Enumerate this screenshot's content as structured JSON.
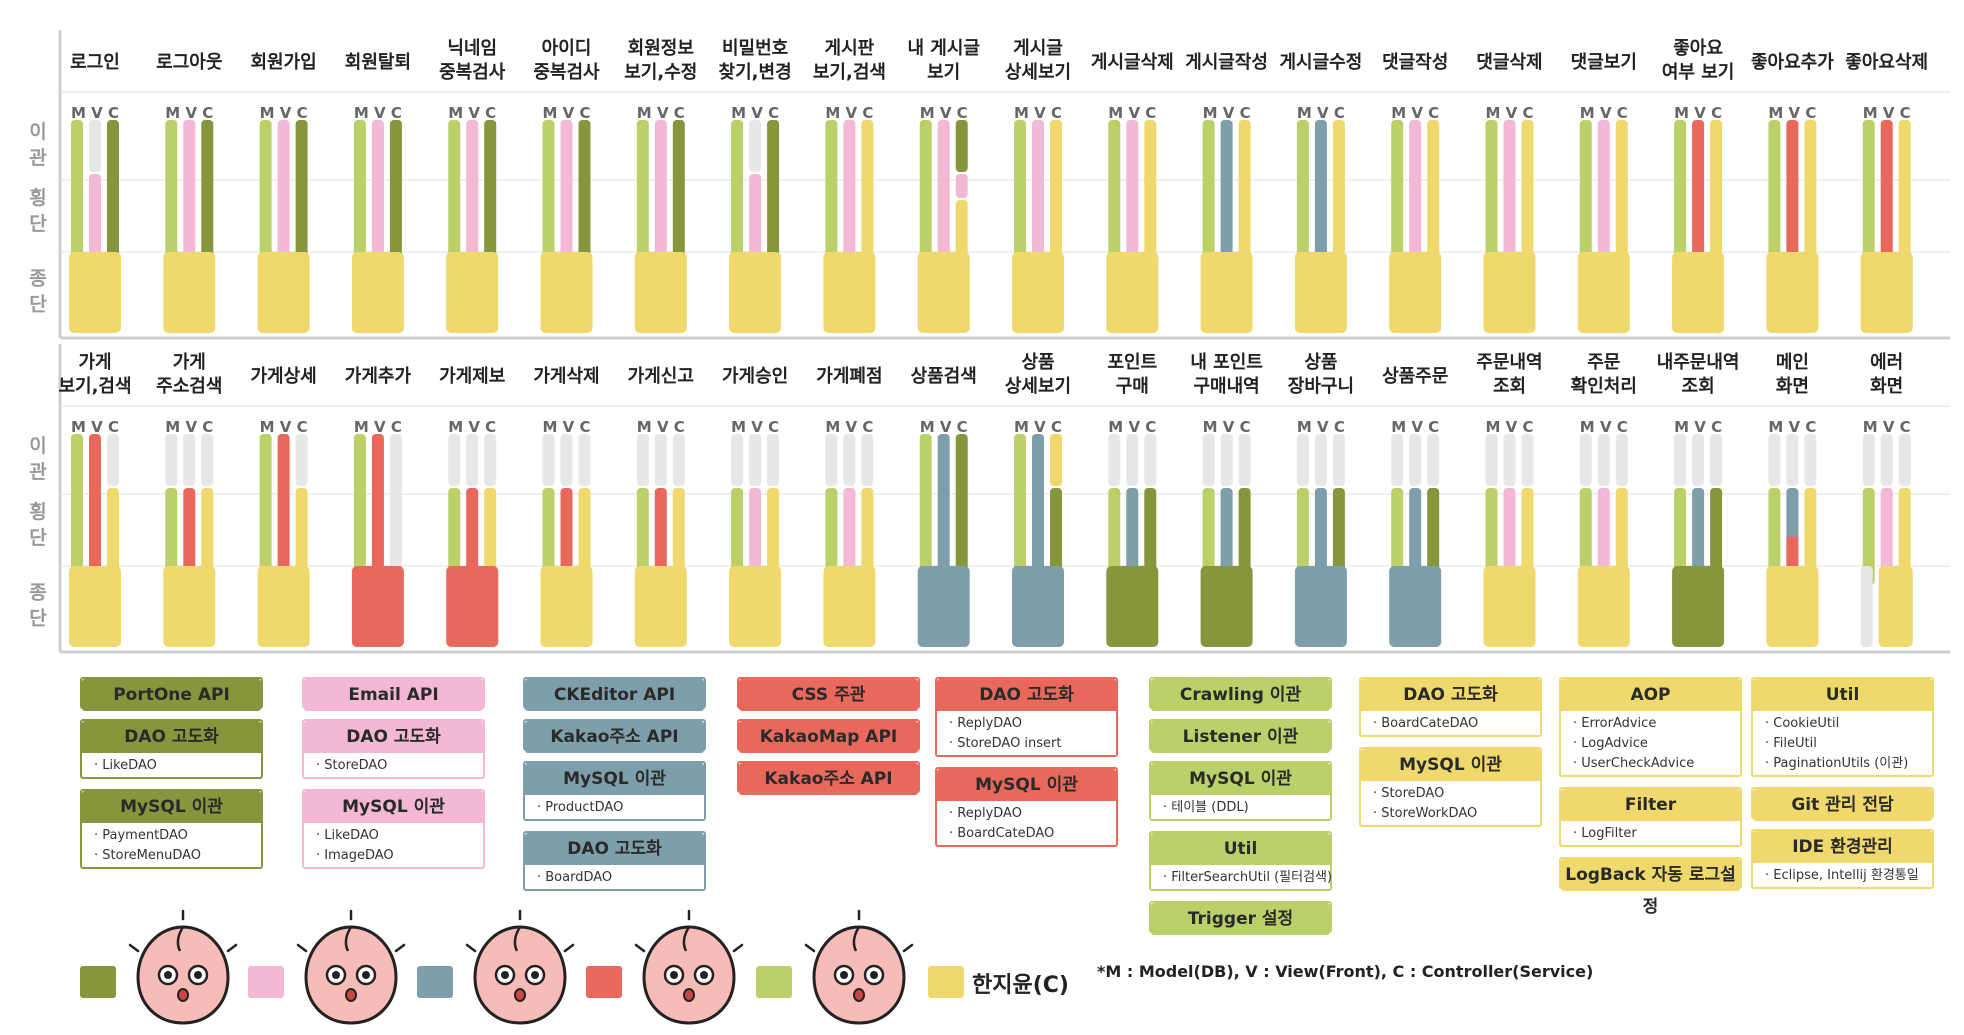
{
  "colors": {
    "olive": "#87953C",
    "pink": "#F2B8D4",
    "steel": "#7E9EAB",
    "coral": "#E8685C",
    "lime": "#BCD06A",
    "yellow": "#EFD96C",
    "gray": "#E7E7E7",
    "grid": "#cfcfcf"
  },
  "phases": [
    "이관",
    "횡단",
    "종단"
  ],
  "mvc_label": "M V C",
  "row1": [
    {
      "label": [
        "로그인"
      ],
      "bars": [
        "lime",
        "gray/pink",
        "olive"
      ],
      "foot": "yellow"
    },
    {
      "label": [
        "로그아웃"
      ],
      "bars": [
        "lime",
        "pink",
        "olive"
      ],
      "foot": "yellow"
    },
    {
      "label": [
        "회원가입"
      ],
      "bars": [
        "lime",
        "pink",
        "olive"
      ],
      "foot": "yellow"
    },
    {
      "label": [
        "회원탈퇴"
      ],
      "bars": [
        "lime",
        "pink",
        "olive"
      ],
      "foot": "yellow"
    },
    {
      "label": [
        "닉네임",
        "중복검사"
      ],
      "bars": [
        "lime",
        "pink",
        "olive"
      ],
      "foot": "yellow"
    },
    {
      "label": [
        "아이디",
        "중복검사"
      ],
      "bars": [
        "lime",
        "pink",
        "olive"
      ],
      "foot": "yellow"
    },
    {
      "label": [
        "회원정보",
        "보기,수정"
      ],
      "bars": [
        "lime",
        "pink",
        "olive"
      ],
      "foot": "yellow"
    },
    {
      "label": [
        "비밀번호",
        "찾기,변경"
      ],
      "bars": [
        "lime",
        "gray/pink",
        "olive"
      ],
      "foot": "yellow"
    },
    {
      "label": [
        "게시판",
        "보기,검색"
      ],
      "bars": [
        "lime",
        "pink",
        "yellow"
      ],
      "foot": "yellow"
    },
    {
      "label": [
        "내 게시글",
        "보기"
      ],
      "bars": [
        "lime",
        "pink",
        "olive/pink/yellow"
      ],
      "foot": "yellow"
    },
    {
      "label": [
        "게시글",
        "상세보기"
      ],
      "bars": [
        "lime",
        "pink",
        "yellow"
      ],
      "foot": "yellow"
    },
    {
      "label": [
        "게시글삭제"
      ],
      "bars": [
        "lime",
        "pink",
        "yellow"
      ],
      "foot": "yellow"
    },
    {
      "label": [
        "게시글작성"
      ],
      "bars": [
        "lime",
        "steel",
        "yellow"
      ],
      "foot": "yellow"
    },
    {
      "label": [
        "게시글수정"
      ],
      "bars": [
        "lime",
        "steel",
        "yellow"
      ],
      "foot": "yellow"
    },
    {
      "label": [
        "댓글작성"
      ],
      "bars": [
        "lime",
        "pink",
        "yellow"
      ],
      "foot": "yellow"
    },
    {
      "label": [
        "댓글삭제"
      ],
      "bars": [
        "lime",
        "pink",
        "yellow"
      ],
      "foot": "yellow"
    },
    {
      "label": [
        "댓글보기"
      ],
      "bars": [
        "lime",
        "pink",
        "yellow"
      ],
      "foot": "yellow"
    },
    {
      "label": [
        "좋아요",
        "여부 보기"
      ],
      "bars": [
        "lime",
        "coral",
        "yellow"
      ],
      "foot": "yellow"
    },
    {
      "label": [
        "좋아요추가"
      ],
      "bars": [
        "lime",
        "coral",
        "yellow"
      ],
      "foot": "yellow"
    },
    {
      "label": [
        "좋아요삭제"
      ],
      "bars": [
        "lime",
        "coral",
        "yellow"
      ],
      "foot": "yellow"
    }
  ],
  "row2": [
    {
      "label": [
        "가게",
        "보기,검색"
      ],
      "bars": [
        "lime",
        "coral",
        "gray"
      ],
      "foot": "yellow",
      "split": "top"
    },
    {
      "label": [
        "가게",
        "주소검색"
      ],
      "bars": [
        "gray/lime",
        "gray/coral",
        "gray/yellow"
      ],
      "foot": "yellow"
    },
    {
      "label": [
        "가게상세"
      ],
      "bars": [
        "lime",
        "coral",
        "gray"
      ],
      "foot": "yellow",
      "split": "top"
    },
    {
      "label": [
        "가게추가"
      ],
      "bars": [
        "lime",
        "coral",
        "gray"
      ],
      "foot": "coral"
    },
    {
      "label": [
        "가게제보"
      ],
      "bars": [
        "gray/lime",
        "gray/coral",
        "gray/yellow"
      ],
      "foot": "coral"
    },
    {
      "label": [
        "가게삭제"
      ],
      "bars": [
        "gray/lime",
        "gray/coral",
        "gray/yellow"
      ],
      "foot": "yellow"
    },
    {
      "label": [
        "가게신고"
      ],
      "bars": [
        "gray/lime",
        "gray/coral",
        "gray/yellow"
      ],
      "foot": "yellow"
    },
    {
      "label": [
        "가게승인"
      ],
      "bars": [
        "gray/lime",
        "gray/pink",
        "gray/yellow"
      ],
      "foot": "yellow"
    },
    {
      "label": [
        "가게폐점"
      ],
      "bars": [
        "gray/lime",
        "gray/pink",
        "gray/yellow"
      ],
      "foot": "yellow"
    },
    {
      "label": [
        "상품검색"
      ],
      "bars": [
        "lime",
        "steel",
        "olive"
      ],
      "foot": "steel"
    },
    {
      "label": [
        "상품",
        "상세보기"
      ],
      "bars": [
        "lime",
        "steel",
        "yellow/olive"
      ],
      "foot": "steel"
    },
    {
      "label": [
        "포인트",
        "구매"
      ],
      "bars": [
        "gray/lime",
        "gray/steel",
        "gray/olive"
      ],
      "foot": "olive"
    },
    {
      "label": [
        "내 포인트",
        "구매내역"
      ],
      "bars": [
        "gray/lime",
        "gray/steel",
        "gray/olive"
      ],
      "foot": "olive"
    },
    {
      "label": [
        "상품",
        "장바구니"
      ],
      "bars": [
        "gray/lime",
        "gray/steel",
        "gray/olive"
      ],
      "foot": "steel"
    },
    {
      "label": [
        "상품주문"
      ],
      "bars": [
        "gray/lime",
        "gray/steel",
        "gray/olive"
      ],
      "foot": "steel"
    },
    {
      "label": [
        "주문내역",
        "조회"
      ],
      "bars": [
        "gray/lime",
        "gray/pink",
        "gray/yellow"
      ],
      "foot": "yellow"
    },
    {
      "label": [
        "주문",
        "확인처리"
      ],
      "bars": [
        "gray/lime",
        "gray/pink",
        "gray/yellow"
      ],
      "foot": "yellow"
    },
    {
      "label": [
        "내주문내역",
        "조회"
      ],
      "bars": [
        "gray/lime",
        "gray/steel",
        "gray/olive"
      ],
      "foot": "olive"
    },
    {
      "label": [
        "메인",
        "화면"
      ],
      "bars": [
        "gray/lime",
        "gray/steel+coral",
        "gray/yellow"
      ],
      "foot": "yellow"
    },
    {
      "label": [
        "에러",
        "화면"
      ],
      "bars": [
        "gray/lime",
        "gray/pink",
        "gray/yellow"
      ],
      "foot": "yellow",
      "foot_split": true
    }
  ],
  "task_boxes": [
    {
      "color": "olive",
      "col": 0,
      "title": "PortOne API",
      "items": []
    },
    {
      "color": "olive",
      "col": 0,
      "title": "DAO 고도화",
      "items": [
        "LikeDAO"
      ]
    },
    {
      "color": "olive",
      "col": 0,
      "title": "MySQL 이관",
      "items": [
        "PaymentDAO",
        "StoreMenuDAO"
      ]
    },
    {
      "color": "pink",
      "col": 1,
      "title": "Email API",
      "items": []
    },
    {
      "color": "pink",
      "col": 1,
      "title": "DAO 고도화",
      "items": [
        "StoreDAO"
      ]
    },
    {
      "color": "pink",
      "col": 1,
      "title": "MySQL 이관",
      "items": [
        "LikeDAO",
        "ImageDAO"
      ]
    },
    {
      "color": "steel",
      "col": 2,
      "title": "CKEditor API",
      "items": []
    },
    {
      "color": "steel",
      "col": 2,
      "title": "Kakao주소 API",
      "items": []
    },
    {
      "color": "steel",
      "col": 2,
      "title": "MySQL 이관",
      "items": [
        "ProductDAO"
      ]
    },
    {
      "color": "steel",
      "col": 2,
      "title": "DAO 고도화",
      "items": [
        "BoardDAO"
      ]
    },
    {
      "color": "coral",
      "col": 3,
      "title": "CSS 주관",
      "items": []
    },
    {
      "color": "coral",
      "col": 3,
      "title": "KakaoMap API",
      "items": []
    },
    {
      "color": "coral",
      "col": 3,
      "title": "Kakao주소 API",
      "items": []
    },
    {
      "color": "coral",
      "col": 4,
      "title": "DAO 고도화",
      "items": [
        "ReplyDAO",
        "StoreDAO insert"
      ]
    },
    {
      "color": "coral",
      "col": 4,
      "title": "MySQL 이관",
      "items": [
        "ReplyDAO",
        "BoardCateDAO"
      ]
    },
    {
      "color": "lime",
      "col": 5,
      "title": "Crawling 이관",
      "items": []
    },
    {
      "color": "lime",
      "col": 5,
      "title": "Listener 이관",
      "items": []
    },
    {
      "color": "lime",
      "col": 5,
      "title": "MySQL 이관",
      "items": [
        "테이블 (DDL)"
      ]
    },
    {
      "color": "lime",
      "col": 5,
      "title": "Util",
      "items": [
        "FilterSearchUtil (필터검색)"
      ]
    },
    {
      "color": "lime",
      "col": 5,
      "title": "Trigger 설정",
      "items": []
    },
    {
      "color": "yellow",
      "col": 6,
      "title": "DAO 고도화",
      "items": [
        "BoardCateDAO"
      ]
    },
    {
      "color": "yellow",
      "col": 6,
      "title": "MySQL 이관",
      "items": [
        "StoreDAO",
        "StoreWorkDAO"
      ]
    },
    {
      "color": "yellow",
      "col": 7,
      "title": "AOP",
      "items": [
        "ErrorAdvice",
        "LogAdvice",
        "UserCheckAdvice"
      ]
    },
    {
      "color": "yellow",
      "col": 7,
      "title": "Filter",
      "items": [
        "LogFilter"
      ]
    },
    {
      "color": "yellow",
      "col": 7,
      "title": "LogBack 자동 로그설정",
      "items": []
    },
    {
      "color": "yellow",
      "col": 8,
      "title": "Util",
      "items": [
        "CookieUtil",
        "FileUtil",
        "PaginationUtils (이관)"
      ]
    },
    {
      "color": "yellow",
      "col": 8,
      "title": "Git 관리 전담",
      "items": []
    },
    {
      "color": "yellow",
      "col": 8,
      "title": "IDE 환경관리",
      "items": [
        "Eclipse, Intellij 환경통일"
      ]
    }
  ],
  "team": [
    {
      "color": "olive",
      "name": "",
      "avatar": "peach-surprised"
    },
    {
      "color": "pink",
      "name": "",
      "avatar": "peach-fork"
    },
    {
      "color": "steel",
      "name": "",
      "avatar": "peach-crying"
    },
    {
      "color": "coral",
      "name": "",
      "avatar": "peach-excited"
    },
    {
      "color": "lime",
      "name": "",
      "avatar": "peach-worried"
    },
    {
      "color": "yellow",
      "name": "한지윤(C)",
      "avatar": ""
    }
  ],
  "footnote": "*M : Model(DB), V : View(Front), C : Controller(Service)"
}
